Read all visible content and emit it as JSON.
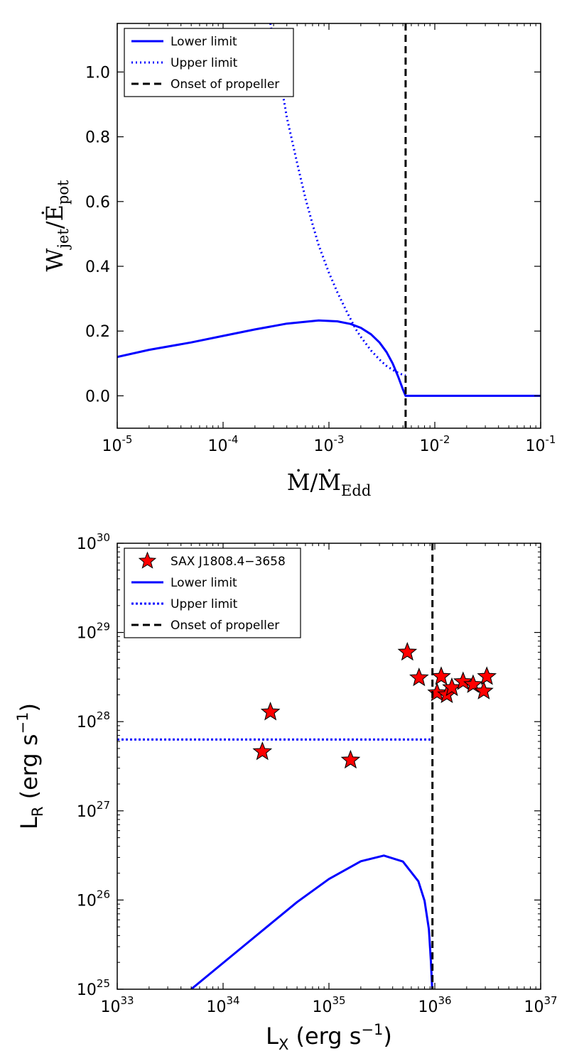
{
  "chart_data": [
    {
      "type": "line",
      "id": "top",
      "xscale": "log",
      "xlim": [
        1e-05,
        0.1
      ],
      "ylim": [
        -0.1,
        1.15
      ],
      "xlabel": {
        "base": "Ṁ/Ṁ",
        "sub": "Edd"
      },
      "ylabel": {
        "base": "W",
        "sub1": "jet",
        "mid": "/Ė",
        "sub2": "pot"
      },
      "xticks": [
        {
          "base": "10",
          "exp": "-5",
          "value": 1e-05
        },
        {
          "base": "10",
          "exp": "-4",
          "value": 0.0001
        },
        {
          "base": "10",
          "exp": "-3",
          "value": 0.001
        },
        {
          "base": "10",
          "exp": "-2",
          "value": 0.01
        },
        {
          "base": "10",
          "exp": "-1",
          "value": 0.1
        }
      ],
      "yticks": [
        {
          "label": "0.0",
          "value": 0.0
        },
        {
          "label": "0.2",
          "value": 0.2
        },
        {
          "label": "0.4",
          "value": 0.4
        },
        {
          "label": "0.6",
          "value": 0.6
        },
        {
          "label": "0.8",
          "value": 0.8
        },
        {
          "label": "1.0",
          "value": 1.0
        }
      ],
      "legend": {
        "position": "top-left",
        "entries": [
          "Lower limit",
          "Upper limit",
          "Onset of propeller"
        ]
      },
      "series": [
        {
          "name": "Lower limit",
          "style": "solid",
          "color": "#0000ff",
          "x": [
            1e-05,
            2e-05,
            5e-05,
            0.0001,
            0.0002,
            0.0004,
            0.0008,
            0.0012,
            0.0016,
            0.002,
            0.0025,
            0.003,
            0.0035,
            0.004,
            0.0045,
            0.005,
            0.0053,
            0.1
          ],
          "y": [
            0.12,
            0.142,
            0.165,
            0.185,
            0.205,
            0.223,
            0.233,
            0.23,
            0.222,
            0.21,
            0.19,
            0.165,
            0.135,
            0.1,
            0.06,
            0.02,
            0.0,
            0.0
          ]
        },
        {
          "name": "Upper limit",
          "style": "dotted",
          "color": "#0000ff",
          "x": [
            0.00028,
            0.0003,
            0.00035,
            0.0004,
            0.0005,
            0.0006,
            0.0007,
            0.0008,
            0.001,
            0.0012,
            0.0015,
            0.0018,
            0.002,
            0.0025,
            0.003,
            0.0035,
            0.004,
            0.0045,
            0.005,
            0.0053
          ],
          "y": [
            1.15,
            1.09,
            0.97,
            0.86,
            0.72,
            0.61,
            0.53,
            0.465,
            0.38,
            0.32,
            0.255,
            0.205,
            0.182,
            0.14,
            0.112,
            0.092,
            0.08,
            0.071,
            0.065,
            0.063
          ]
        },
        {
          "name": "Onset of propeller",
          "style": "dashed",
          "color": "#000000",
          "vline_x": 0.0053
        }
      ]
    },
    {
      "type": "scatter",
      "id": "bottom",
      "xscale": "log",
      "yscale": "log",
      "xlim": [
        1e+33,
        1e+37
      ],
      "ylim": [
        1e+25,
        1e+30
      ],
      "xlabel": {
        "base": "L",
        "sub": "X",
        "rest": " (erg s",
        "exp": "−1",
        "close": ")"
      },
      "ylabel": {
        "base": "L",
        "sub": "R",
        "rest": " (erg s",
        "exp": "−1",
        "close": ")"
      },
      "xticks": [
        {
          "base": "10",
          "exp": "33",
          "value": 1e+33
        },
        {
          "base": "10",
          "exp": "34",
          "value": 1e+34
        },
        {
          "base": "10",
          "exp": "35",
          "value": 1e+35
        },
        {
          "base": "10",
          "exp": "36",
          "value": 1e+36
        },
        {
          "base": "10",
          "exp": "37",
          "value": 1e+37
        }
      ],
      "yticks": [
        {
          "base": "10",
          "exp": "25",
          "value": 1e+25
        },
        {
          "base": "10",
          "exp": "26",
          "value": 1e+26
        },
        {
          "base": "10",
          "exp": "27",
          "value": 1e+27
        },
        {
          "base": "10",
          "exp": "28",
          "value": 1e+28
        },
        {
          "base": "10",
          "exp": "29",
          "value": 1e+29
        },
        {
          "base": "10",
          "exp": "30",
          "value": 1e+30
        }
      ],
      "legend": {
        "position": "top-left",
        "entries": [
          "SAX J1808.4−3658",
          "Lower limit",
          "Upper limit",
          "Onset of propeller"
        ]
      },
      "series": [
        {
          "name": "SAX J1808.4−3658",
          "style": "star",
          "color": "#ff0000",
          "x": [
            2.35e+34,
            2.8e+34,
            1.6e+35,
            5.5e+35,
            7.1e+35,
            1.05e+36,
            1.15e+36,
            1.3e+36,
            1.45e+36,
            1.85e+36,
            2.3e+36,
            2.9e+36,
            3.1e+36
          ],
          "y": [
            4.6e+27,
            1.28e+28,
            3.7e+27,
            6e+28,
            3.1e+28,
            2.1e+28,
            3.2e+28,
            2e+28,
            2.4e+28,
            2.8e+28,
            2.6e+28,
            2.2e+28,
            3.2e+28
          ]
        },
        {
          "name": "Lower limit",
          "style": "solid",
          "color": "#0000ff",
          "x": [
            5e+33,
            1e+34,
            2e+34,
            5e+34,
            1e+35,
            2e+35,
            3.3e+35,
            5e+35,
            7e+35,
            8e+35,
            8.8e+35,
            9.2e+35,
            9.45e+35
          ],
          "y": [
            1e+25,
            1.97e+25,
            3.88e+25,
            9.48e+25,
            1.72e+26,
            2.72e+26,
            3.15e+26,
            2.7e+26,
            1.62e+26,
            9.8e+25,
            4.7e+25,
            2e+25,
            1e+25
          ]
        },
        {
          "name": "Upper limit",
          "style": "dotted",
          "color": "#0000ff",
          "x": [
            1e+33,
            9.5e+35
          ],
          "y": [
            6.3e+27,
            6.3e+27
          ]
        },
        {
          "name": "Onset of propeller",
          "style": "dashed",
          "color": "#000000",
          "vline_x": 9.5e+35
        }
      ]
    }
  ]
}
